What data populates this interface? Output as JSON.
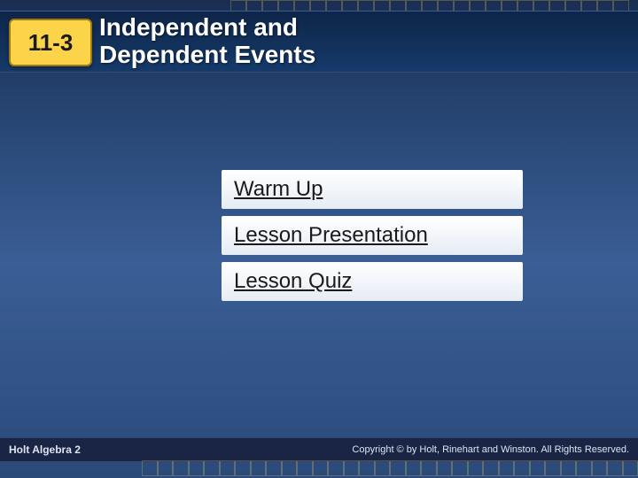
{
  "header": {
    "lesson_number": "11-3",
    "title_line1": "Independent and",
    "title_line2": "Dependent Events"
  },
  "nav": {
    "items": [
      {
        "label": "Warm Up"
      },
      {
        "label": "Lesson Presentation"
      },
      {
        "label": "Lesson Quiz"
      }
    ]
  },
  "footer": {
    "left": "Holt Algebra 2",
    "right": "Copyright © by Holt, Rinehart and Winston. All Rights Reserved."
  },
  "style": {
    "badge_bg": "#fcd44a",
    "badge_border": "#a07a10",
    "header_gradient_top": "#0e2548",
    "header_gradient_bottom": "#153a6a",
    "slide_bg_top": "#1a2e52",
    "slide_bg_mid": "#3a5e95",
    "nav_bg_top": "#ffffff",
    "nav_bg_bottom": "#e6ecf5",
    "nav_text": "#1a1a1a",
    "title_color": "#ffffff",
    "footer_bg": "#1a2545",
    "footer_text": "#dde4f0",
    "grid_border": "rgba(255,220,80,0.25)",
    "title_fontsize": 28,
    "badge_fontsize": 26,
    "nav_fontsize": 24,
    "footer_fontsize": 12
  }
}
